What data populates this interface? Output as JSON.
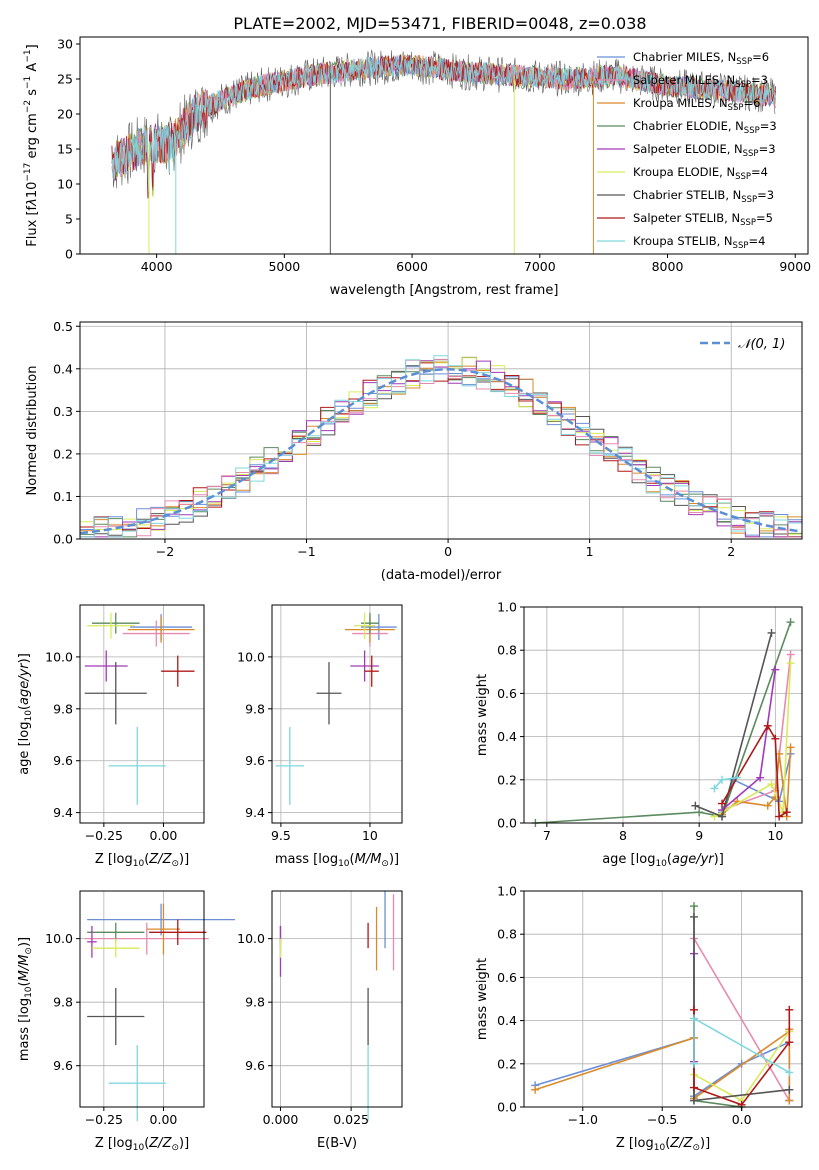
{
  "figure_title": "PLATE=2002, MJD=53471, FIBERID=0048, z=0.038",
  "models": [
    {
      "name": "Chabrier MILES, N$_{SSP}$=6",
      "n": "6",
      "base": "Chabrier MILES, N",
      "color": "#6b8fd6"
    },
    {
      "name": "Salpeter MILES, N$_{SSP}$=3",
      "n": "3",
      "base": "Salpeter MILES, N",
      "color": "#e88ab0"
    },
    {
      "name": "Kroupa MILES, N$_{SSP}$=6",
      "n": "6",
      "base": "Kroupa MILES, N",
      "color": "#d98a2b"
    },
    {
      "name": "Chabrier ELODIE, N$_{SSP}$=3",
      "n": "3",
      "base": "Chabrier ELODIE, N",
      "color": "#5b8a5e"
    },
    {
      "name": "Salpeter ELODIE, N$_{SSP}$=3",
      "n": "3",
      "base": "Salpeter ELODIE, N",
      "color": "#a23ab8"
    },
    {
      "name": "Kroupa ELODIE, N$_{SSP}$=4",
      "n": "4",
      "base": "Kroupa ELODIE, N",
      "color": "#d9ea5a"
    },
    {
      "name": "Chabrier STELIB, N$_{SSP}$=3",
      "n": "3",
      "base": "Chabrier STELIB, N",
      "color": "#555555"
    },
    {
      "name": "Salpeter STELIB, N$_{SSP}$=5",
      "n": "5",
      "base": "Salpeter STELIB, N",
      "color": "#b01818"
    },
    {
      "name": "Kroupa STELIB, N$_{SSP}$=4",
      "n": "4",
      "base": "Kroupa STELIB, N",
      "color": "#7fd8de"
    }
  ],
  "chart_data": [
    {
      "type": "line",
      "panel": "spectrum",
      "xlabel": "wavelength [Angstrom, rest frame]",
      "ylabel": "Flux [f_λ 10^-17 erg cm^-2 s^-1 A^-1]",
      "xlim": [
        3400,
        9100
      ],
      "ylim": [
        0,
        31
      ],
      "xticks": [
        4000,
        5000,
        6000,
        7000,
        8000,
        9000
      ],
      "yticks": [
        0,
        5,
        10,
        15,
        20,
        25,
        30
      ],
      "legend": "top-right",
      "spectrum_anchors": {
        "x": [
          3650,
          3800,
          3950,
          4100,
          4300,
          4500,
          4800,
          5200,
          5600,
          6000,
          6400,
          6800,
          7200,
          7600,
          8000,
          8400,
          8850
        ],
        "y": [
          13,
          14.5,
          16,
          15.5,
          20,
          22,
          24,
          25.5,
          26.5,
          27,
          26,
          25.5,
          25,
          25.5,
          24,
          23.5,
          22.5
        ]
      },
      "grid": false
    },
    {
      "type": "line",
      "panel": "residual-histogram",
      "xlabel": "(data-model)/error",
      "ylabel": "Normed distribution",
      "xlim": [
        -2.6,
        2.5
      ],
      "ylim": [
        0,
        0.51
      ],
      "xticks": [
        -2,
        -1,
        0,
        1,
        2
      ],
      "yticks": [
        0.0,
        0.1,
        0.2,
        0.3,
        0.4,
        0.5
      ],
      "reference_curve": "N(0,1)",
      "legend_label": "𝒩(0, 1)",
      "legend": "top-right",
      "grid": true
    },
    {
      "type": "scatter",
      "panel": "age-vs-Z",
      "xlabel": "Z [log10(Z/Z☉)]",
      "ylabel": "age [log10(age/yr)]",
      "xlim": [
        -0.35,
        0.17
      ],
      "ylim": [
        9.36,
        10.2
      ],
      "xticks": [
        -0.25,
        0.0
      ],
      "xticklabels": [
        "−0.25",
        "0.00"
      ],
      "yticks": [
        9.4,
        9.6,
        9.8,
        10.0
      ],
      "points": [
        {
          "model": 0,
          "x": -0.01,
          "y": 10.115,
          "xerr": 0.13,
          "yerr": 0.05
        },
        {
          "model": 1,
          "x": -0.03,
          "y": 10.09,
          "xerr": 0.14,
          "yerr": 0.05
        },
        {
          "model": 2,
          "x": -0.01,
          "y": 10.105,
          "xerr": 0.14,
          "yerr": 0.05
        },
        {
          "model": 3,
          "x": -0.2,
          "y": 10.13,
          "xerr": 0.1,
          "yerr": 0.04
        },
        {
          "model": 4,
          "x": -0.24,
          "y": 9.965,
          "xerr": 0.09,
          "yerr": 0.06
        },
        {
          "model": 5,
          "x": -0.22,
          "y": 10.12,
          "xerr": 0.1,
          "yerr": 0.05
        },
        {
          "model": 6,
          "x": -0.2,
          "y": 9.86,
          "xerr": 0.13,
          "yerr": 0.12
        },
        {
          "model": 7,
          "x": 0.06,
          "y": 9.945,
          "xerr": 0.07,
          "yerr": 0.06
        },
        {
          "model": 8,
          "x": -0.11,
          "y": 9.58,
          "xerr": 0.12,
          "yerr": 0.15
        }
      ],
      "grid": true
    },
    {
      "type": "scatter",
      "panel": "age-vs-mass",
      "xlabel": "mass [log10(M/M☉)]",
      "ylabel": "",
      "xlim": [
        9.45,
        10.18
      ],
      "ylim": [
        9.36,
        10.2
      ],
      "xticks": [
        9.5,
        10.0
      ],
      "yticks": [
        9.4,
        9.6,
        9.8,
        10.0
      ],
      "points": [
        {
          "model": 0,
          "x": 10.05,
          "y": 10.115,
          "xerr": 0.1,
          "yerr": 0.05
        },
        {
          "model": 1,
          "x": 10.0,
          "y": 10.09,
          "xerr": 0.1,
          "yerr": 0.05
        },
        {
          "model": 2,
          "x": 10.0,
          "y": 10.105,
          "xerr": 0.14,
          "yerr": 0.05
        },
        {
          "model": 3,
          "x": 10.0,
          "y": 10.13,
          "xerr": 0.05,
          "yerr": 0.04
        },
        {
          "model": 4,
          "x": 9.97,
          "y": 9.965,
          "xerr": 0.08,
          "yerr": 0.06
        },
        {
          "model": 5,
          "x": 9.97,
          "y": 10.12,
          "xerr": 0.06,
          "yerr": 0.05
        },
        {
          "model": 6,
          "x": 9.77,
          "y": 9.86,
          "xerr": 0.07,
          "yerr": 0.12
        },
        {
          "model": 7,
          "x": 10.01,
          "y": 9.945,
          "xerr": 0.04,
          "yerr": 0.06
        },
        {
          "model": 8,
          "x": 9.55,
          "y": 9.58,
          "xerr": 0.08,
          "yerr": 0.15
        }
      ],
      "grid": true
    },
    {
      "type": "line",
      "panel": "weight-vs-age",
      "xlabel": "age [log10(age/yr)]",
      "ylabel": "mass weight",
      "xlim": [
        6.7,
        10.35
      ],
      "ylim": [
        0,
        1.0
      ],
      "xticks": [
        7,
        8,
        9,
        10
      ],
      "yticks": [
        0.0,
        0.2,
        0.4,
        0.6,
        0.8,
        1.0
      ],
      "series": [
        {
          "model": 0,
          "x": [
            9.3,
            9.45,
            10.05,
            10.2
          ],
          "y": [
            0.05,
            0.2,
            0.1,
            0.32
          ]
        },
        {
          "model": 1,
          "x": [
            9.3,
            10.0,
            10.2
          ],
          "y": [
            0.06,
            0.15,
            0.78
          ]
        },
        {
          "model": 2,
          "x": [
            9.3,
            9.5,
            9.9,
            10.0,
            10.05,
            10.15,
            10.2
          ],
          "y": [
            0.04,
            0.1,
            0.08,
            0.12,
            0.32,
            0.03,
            0.35
          ]
        },
        {
          "model": 3,
          "x": [
            6.85,
            9.0,
            9.3,
            10.2
          ],
          "y": [
            0.0,
            0.05,
            0.03,
            0.93
          ]
        },
        {
          "model": 4,
          "x": [
            9.3,
            9.8,
            10.0
          ],
          "y": [
            0.06,
            0.21,
            0.71
          ]
        },
        {
          "model": 5,
          "x": [
            9.2,
            9.95,
            10.1,
            10.2
          ],
          "y": [
            0.03,
            0.18,
            0.05,
            0.74
          ]
        },
        {
          "model": 6,
          "x": [
            8.95,
            9.3,
            9.95
          ],
          "y": [
            0.08,
            0.03,
            0.88
          ]
        },
        {
          "model": 7,
          "x": [
            9.3,
            9.9,
            10.0,
            10.05,
            10.15
          ],
          "y": [
            0.09,
            0.45,
            0.39,
            0.03,
            0.05
          ]
        },
        {
          "model": 8,
          "x": [
            9.2,
            9.3,
            9.5
          ],
          "y": [
            0.16,
            0.2,
            0.21
          ]
        }
      ],
      "grid": true
    },
    {
      "type": "scatter",
      "panel": "mass-vs-Z",
      "xlabel": "Z [log10(Z/Z☉)]",
      "ylabel": "mass [log10(M/M☉)]",
      "xlim": [
        -0.35,
        0.17
      ],
      "ylim": [
        9.47,
        10.15
      ],
      "xticks": [
        -0.25,
        0.0
      ],
      "xticklabels": [
        "−0.25",
        "0.00"
      ],
      "yticks": [
        9.6,
        9.8,
        10.0
      ],
      "points": [
        {
          "model": 0,
          "x": -0.01,
          "y": 10.06,
          "xerr": 0.31,
          "yerr": 0.05
        },
        {
          "model": 1,
          "x": -0.07,
          "y": 10.0,
          "xerr": 0.26,
          "yerr": 0.05
        },
        {
          "model": 2,
          "x": 0.0,
          "y": 10.03,
          "xerr": 0.07,
          "yerr": 0.08
        },
        {
          "model": 3,
          "x": -0.2,
          "y": 10.02,
          "xerr": 0.12,
          "yerr": 0.03
        },
        {
          "model": 4,
          "x": -0.3,
          "y": 9.99,
          "xerr": 0.02,
          "yerr": 0.05
        },
        {
          "model": 5,
          "x": -0.2,
          "y": 9.97,
          "xerr": 0.1,
          "yerr": 0.03
        },
        {
          "model": 6,
          "x": -0.2,
          "y": 9.755,
          "xerr": 0.12,
          "yerr": 0.09
        },
        {
          "model": 7,
          "x": 0.06,
          "y": 10.02,
          "xerr": 0.12,
          "yerr": 0.04
        },
        {
          "model": 8,
          "x": -0.11,
          "y": 9.545,
          "xerr": 0.12,
          "yerr": 0.12
        }
      ],
      "grid": true
    },
    {
      "type": "scatter",
      "panel": "mass-vs-EBV",
      "xlabel": "E(B-V)",
      "ylabel": "",
      "xlim": [
        -0.003,
        0.043
      ],
      "ylim": [
        9.47,
        10.15
      ],
      "xticks": [
        0.0,
        0.025
      ],
      "xticklabels": [
        "0.000",
        "0.025"
      ],
      "yticks": [
        9.6,
        9.8,
        10.0
      ],
      "points": [
        {
          "model": 0,
          "x": 0.037,
          "y": 10.06,
          "xerr": 0,
          "yerr": 0.09
        },
        {
          "model": 1,
          "x": 0.04,
          "y": 10.02,
          "xerr": 0,
          "yerr": 0.12
        },
        {
          "model": 2,
          "x": 0.034,
          "y": 10.0,
          "xerr": 0,
          "yerr": 0.1
        },
        {
          "model": 3,
          "x": 0.0,
          "y": 10.01,
          "xerr": 0,
          "yerr": 0.03
        },
        {
          "model": 4,
          "x": 0.0,
          "y": 9.96,
          "xerr": 0,
          "yerr": 0.08
        },
        {
          "model": 5,
          "x": 0.0,
          "y": 9.97,
          "xerr": 0,
          "yerr": 0.03
        },
        {
          "model": 6,
          "x": 0.031,
          "y": 9.755,
          "xerr": 0,
          "yerr": 0.09
        },
        {
          "model": 7,
          "x": 0.031,
          "y": 10.01,
          "xerr": 0,
          "yerr": 0.04
        },
        {
          "model": 8,
          "x": 0.031,
          "y": 9.545,
          "xerr": 0,
          "yerr": 0.12
        }
      ],
      "grid": true
    },
    {
      "type": "line",
      "panel": "weight-vs-Z",
      "xlabel": "Z [log10(Z/Z☉)]",
      "ylabel": "mass weight",
      "xlim": [
        -1.37,
        0.38
      ],
      "ylim": [
        0,
        1.0
      ],
      "xticks": [
        -1.0,
        -0.5,
        0.0
      ],
      "xticklabels": [
        "−1.0",
        "−0.5",
        "0.0"
      ],
      "yticks": [
        0.0,
        0.2,
        0.4,
        0.6,
        0.8,
        1.0
      ],
      "series": [
        {
          "model": 0,
          "x": [
            -1.3,
            -0.3,
            -0.3,
            0.0,
            0.3,
            0.3
          ],
          "y": [
            0.1,
            0.32,
            0.05,
            0.2,
            0.3,
            0.03
          ]
        },
        {
          "model": 1,
          "x": [
            -0.3,
            0.3
          ],
          "y": [
            0.78,
            0.03
          ]
        },
        {
          "model": 2,
          "x": [
            -1.3,
            -0.3,
            -0.3,
            0.3,
            0.3,
            0.3
          ],
          "y": [
            0.08,
            0.32,
            0.04,
            0.35,
            0.03,
            0.36
          ]
        },
        {
          "model": 3,
          "x": [
            -0.3,
            -0.3,
            0.0
          ],
          "y": [
            0.93,
            0.03,
            0.0
          ]
        },
        {
          "model": 4,
          "x": [
            -0.3,
            -0.3
          ],
          "y": [
            0.71,
            0.21
          ]
        },
        {
          "model": 5,
          "x": [
            -0.3,
            0.0,
            0.3
          ],
          "y": [
            0.15,
            0.03,
            0.35
          ]
        },
        {
          "model": 6,
          "x": [
            -0.3,
            -0.3,
            0.3
          ],
          "y": [
            0.88,
            0.03,
            0.08
          ]
        },
        {
          "model": 7,
          "x": [
            -0.3,
            -0.3,
            0.0,
            0.3,
            0.3
          ],
          "y": [
            0.45,
            0.09,
            0.01,
            0.3,
            0.45
          ]
        },
        {
          "model": 8,
          "x": [
            -0.3,
            -0.3,
            0.3
          ],
          "y": [
            0.2,
            0.41,
            0.16
          ]
        }
      ],
      "grid": true
    }
  ]
}
